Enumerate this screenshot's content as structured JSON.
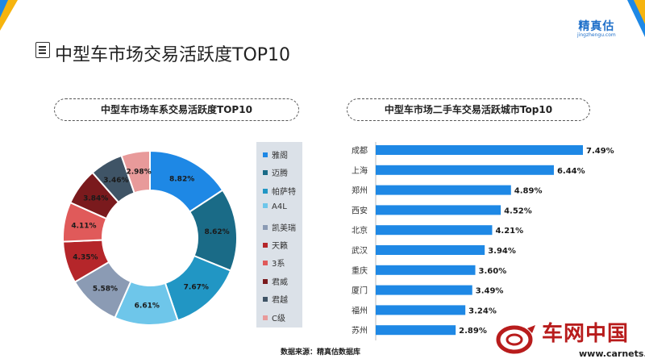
{
  "page": {
    "title": "中型车市场交易活跃度TOP10",
    "brand_name": "精真估",
    "brand_url": "jingzhengu.com",
    "source": "数据来源：精真估数据库",
    "watermark_name": "车网中国",
    "watermark_url": "www.carnets.cn"
  },
  "colors": {
    "accent_blue": "#1e88e5",
    "accent_yellow": "#f6b40e",
    "bar_blue": "#1e88e5",
    "legend_bg": "#dbe1e8"
  },
  "chart_data": [
    {
      "type": "pie",
      "title": "中型车市场车系交易活跃度TOP10",
      "categories": [
        "雅阁",
        "迈腾",
        "帕萨特",
        "A4L",
        "凯美瑞",
        "天籁",
        "3系",
        "君威",
        "君越",
        "C级"
      ],
      "values": [
        8.82,
        8.62,
        7.67,
        6.61,
        5.58,
        4.35,
        4.11,
        3.84,
        3.46,
        2.98
      ],
      "labels": [
        "8.82%",
        "8.62%",
        "7.67%",
        "6.61%",
        "5.58%",
        "4.35%",
        "4.11%",
        "3.84%",
        "3.46%",
        "2.98%"
      ],
      "colors": [
        "#1e88e5",
        "#1a6b87",
        "#2196c4",
        "#6ec6ea",
        "#8b9bb4",
        "#b5262a",
        "#e05a5a",
        "#7a1a1d",
        "#3f5466",
        "#e89a9a"
      ],
      "donut": true,
      "legend": "right"
    },
    {
      "type": "bar",
      "orientation": "horizontal",
      "title": "中型车市场二手车交易活跃城市Top10",
      "categories": [
        "成都",
        "上海",
        "郑州",
        "西安",
        "北京",
        "武汉",
        "重庆",
        "厦门",
        "福州",
        "苏州"
      ],
      "values": [
        7.49,
        6.44,
        4.89,
        4.52,
        4.21,
        3.94,
        3.6,
        3.49,
        3.24,
        2.89
      ],
      "labels": [
        "7.49%",
        "6.44%",
        "4.89%",
        "4.52%",
        "4.21%",
        "3.94%",
        "3.60%",
        "3.49%",
        "3.24%",
        "2.89%"
      ],
      "color": "#1e88e5",
      "xlim": [
        0,
        7.49
      ],
      "grid": false
    }
  ]
}
